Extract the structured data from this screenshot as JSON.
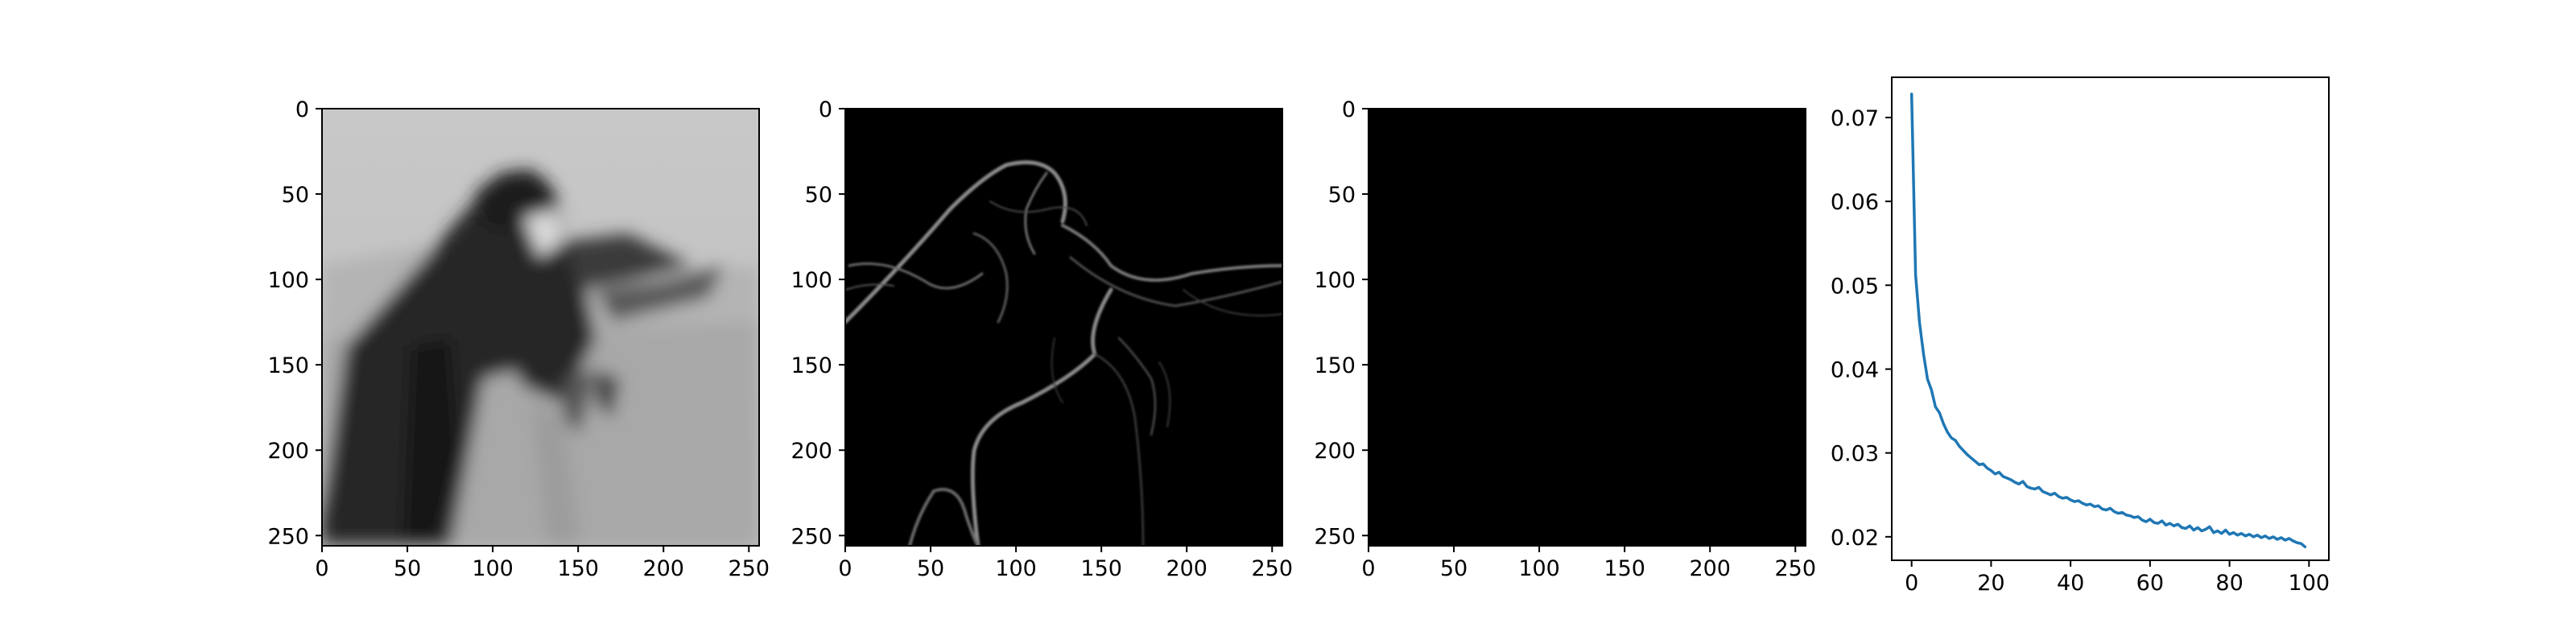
{
  "figure": {
    "background": "#ffffff",
    "panels": [
      {
        "name": "filtered-image",
        "kind": "image",
        "colormap": "gray",
        "xticks": [
          0,
          50,
          100,
          150,
          200,
          250
        ],
        "yticks": [
          0,
          50,
          100,
          150,
          200,
          250
        ],
        "xlim": [
          0,
          256
        ],
        "ylim": [
          256,
          0
        ],
        "image_content": "blurred grayscale cameraman photograph"
      },
      {
        "name": "edge-image",
        "kind": "image",
        "colormap": "gray",
        "xticks": [
          0,
          50,
          100,
          150,
          200,
          250
        ],
        "yticks": [
          0,
          50,
          100,
          150,
          200,
          250
        ],
        "xlim": [
          0,
          256
        ],
        "ylim": [
          256,
          0
        ],
        "image_content": "faint light edge outlines on black"
      },
      {
        "name": "blank-image",
        "kind": "image",
        "colormap": "gray",
        "xticks": [
          0,
          50,
          100,
          150,
          200,
          250
        ],
        "yticks": [
          0,
          50,
          100,
          150,
          200,
          250
        ],
        "xlim": [
          0,
          256
        ],
        "ylim": [
          256,
          0
        ],
        "image_content": "uniform black"
      }
    ]
  },
  "chart_data": {
    "type": "line",
    "title": "",
    "xlabel": "",
    "ylabel": "",
    "xlim": [
      -5,
      105
    ],
    "ylim": [
      0.0172,
      0.0748
    ],
    "xticks": [
      0,
      20,
      40,
      60,
      80,
      100
    ],
    "yticks": [
      0.02,
      0.03,
      0.04,
      0.05,
      0.06,
      0.07
    ],
    "ytick_labels": [
      "0.02",
      "0.03",
      "0.04",
      "0.05",
      "0.06",
      "0.07"
    ],
    "grid": false,
    "legend": "none",
    "series": [
      {
        "color": "#1f77b4",
        "x": [
          0,
          1,
          2,
          3,
          4,
          5,
          6,
          7,
          8,
          9,
          10,
          11,
          12,
          13,
          14,
          15,
          16,
          17,
          18,
          19,
          20,
          21,
          22,
          23,
          24,
          25,
          26,
          27,
          28,
          29,
          30,
          31,
          32,
          33,
          34,
          35,
          36,
          37,
          38,
          39,
          40,
          41,
          42,
          43,
          44,
          45,
          46,
          47,
          48,
          49,
          50,
          51,
          52,
          53,
          54,
          55,
          56,
          57,
          58,
          59,
          60,
          61,
          62,
          63,
          64,
          65,
          66,
          67,
          68,
          69,
          70,
          71,
          72,
          73,
          74,
          75,
          76,
          77,
          78,
          79,
          80,
          81,
          82,
          83,
          84,
          85,
          86,
          87,
          88,
          89,
          90,
          91,
          92,
          93,
          94,
          95,
          96,
          97,
          98,
          99
        ],
        "values": [
          0.0728,
          0.0512,
          0.0455,
          0.0418,
          0.0388,
          0.0375,
          0.0355,
          0.0348,
          0.0335,
          0.0325,
          0.0318,
          0.0315,
          0.0308,
          0.0303,
          0.0298,
          0.0294,
          0.029,
          0.0286,
          0.0287,
          0.0282,
          0.0279,
          0.0275,
          0.0277,
          0.0272,
          0.027,
          0.0268,
          0.0265,
          0.0263,
          0.0266,
          0.026,
          0.0258,
          0.0257,
          0.0259,
          0.0254,
          0.0252,
          0.025,
          0.0252,
          0.0248,
          0.0246,
          0.0247,
          0.0244,
          0.0242,
          0.0243,
          0.024,
          0.0238,
          0.0239,
          0.0236,
          0.0237,
          0.0233,
          0.0232,
          0.0234,
          0.023,
          0.0228,
          0.0229,
          0.0226,
          0.0225,
          0.0223,
          0.0224,
          0.022,
          0.0218,
          0.0221,
          0.0217,
          0.0216,
          0.0219,
          0.0214,
          0.0216,
          0.0213,
          0.0215,
          0.0211,
          0.021,
          0.0213,
          0.0208,
          0.0211,
          0.0207,
          0.0209,
          0.0212,
          0.0205,
          0.0207,
          0.0204,
          0.0208,
          0.0203,
          0.0205,
          0.0202,
          0.0204,
          0.0201,
          0.0203,
          0.02,
          0.0202,
          0.0199,
          0.0201,
          0.0198,
          0.02,
          0.0197,
          0.0199,
          0.0196,
          0.0198,
          0.0195,
          0.0193,
          0.0192,
          0.0188
        ]
      }
    ]
  }
}
